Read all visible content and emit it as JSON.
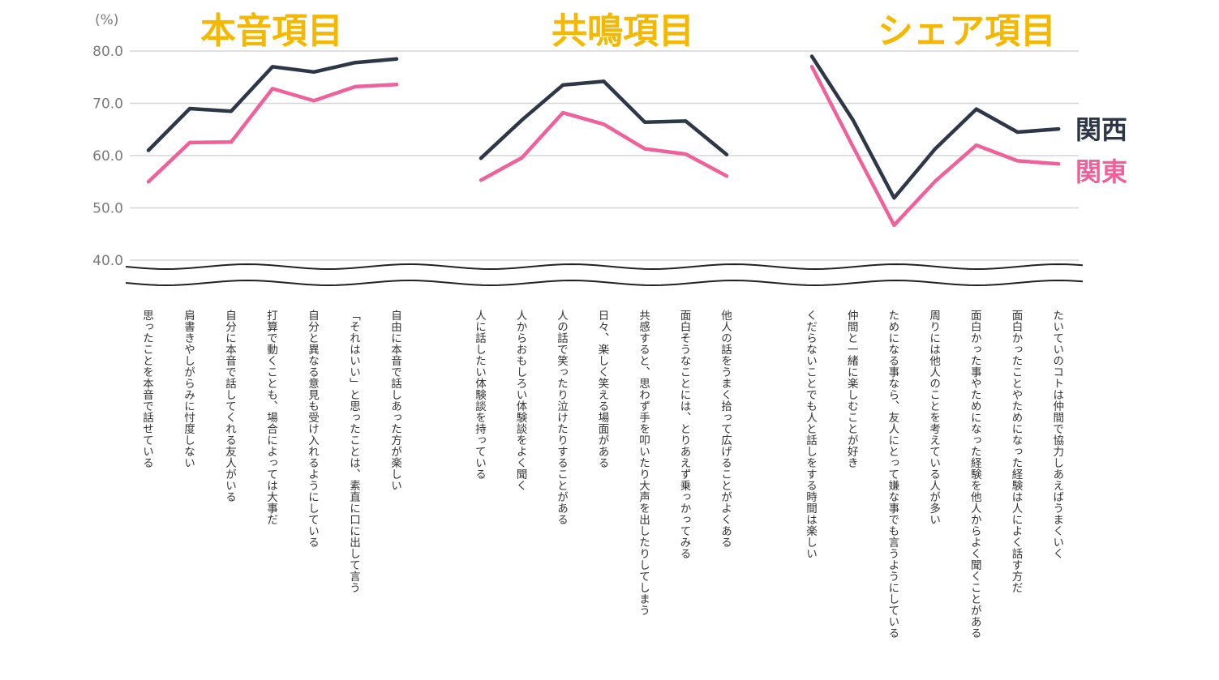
{
  "chart_data": {
    "type": "line",
    "unit_label": "(%)",
    "y_ticks": [
      "40.0",
      "50.0",
      "60.0",
      "70.0",
      "80.0"
    ],
    "ylim": [
      40,
      80
    ],
    "axis_break": true,
    "grid": true,
    "legend": "right",
    "groups": [
      {
        "title": "本音項目",
        "categories": [
          "思ったことを本音で話せている",
          "肩書きやしがらみに忖度しない",
          "自分に本音で話してくれる友人がいる",
          "打算で動くことも、場合によっては大事だ",
          "自分と異なる意見も受け入れるようにしている",
          "「それはいい」と思ったことは、素直に口に出して言う",
          "自由に本音で話しあった方が楽しい"
        ],
        "series": [
          {
            "name": "関西",
            "values": [
              61.0,
              69.0,
              68.5,
              77.0,
              76.0,
              77.8,
              78.5
            ]
          },
          {
            "name": "関東",
            "values": [
              55.0,
              62.5,
              62.6,
              72.8,
              70.5,
              73.2,
              73.6
            ]
          }
        ]
      },
      {
        "title": "共鳴項目",
        "categories": [
          "人に話したい体験談を持っている",
          "人からおもしろい体験談をよく聞く",
          "人の話で笑ったり泣けたりすることがある",
          "日々、楽しく笑える場面がある",
          "共感すると、思わず手を叩いたり大声を出したりしてしまう",
          "面白そうなことには、とりあえず乗っかってみる",
          "他人の話をうまく拾って広げることがよくある"
        ],
        "series": [
          {
            "name": "関西",
            "values": [
              59.5,
              66.8,
              73.5,
              74.2,
              66.4,
              66.6,
              60.2
            ]
          },
          {
            "name": "関東",
            "values": [
              55.3,
              59.6,
              68.2,
              66.0,
              61.3,
              60.3,
              56.1
            ]
          }
        ]
      },
      {
        "title": "シェア項目",
        "categories": [
          "くだらないことでも人と話しをする時間は楽しい",
          "仲間と一緒に楽しむことが好き",
          "ためになる事なら、友人にとって嫌な事でも言うようにしている",
          "周りには他人のことを考えている人が多い",
          "面白かった事やためになった経験を他人からよく聞くことがある",
          "面白かったことやためになった経験は人によく話す方だ",
          "たいていのコトは仲間で協力しあえばうまくいく"
        ],
        "series": [
          {
            "name": "関西",
            "values": [
              79.0,
              66.8,
              51.9,
              61.3,
              68.9,
              64.5,
              65.1
            ]
          },
          {
            "name": "関東",
            "values": [
              77.0,
              61.7,
              46.7,
              55.1,
              62.0,
              59.0,
              58.4
            ]
          }
        ]
      }
    ],
    "legend_entries": [
      {
        "name": "関西",
        "color": "#2d3748"
      },
      {
        "name": "関東",
        "color": "#f0609a"
      }
    ]
  }
}
